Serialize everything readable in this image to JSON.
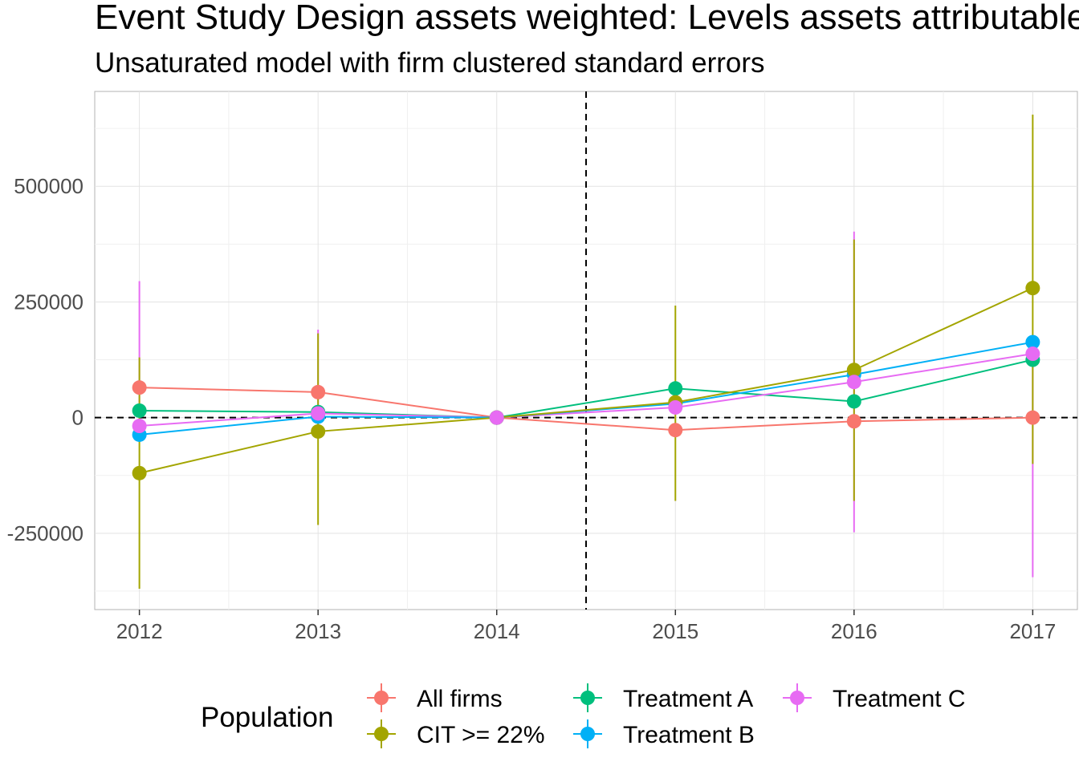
{
  "chart_data": {
    "type": "line",
    "title": "Event Study Design assets weighted: Levels assets attributable",
    "subtitle": "Unsaturated model with firm clustered standard errors",
    "xlabel": "",
    "ylabel": "",
    "x": [
      2012,
      2013,
      2014,
      2015,
      2016,
      2017
    ],
    "x_tick_labels": [
      "2012",
      "2013",
      "2014",
      "2015",
      "2016",
      "2017"
    ],
    "y_tick_values": [
      -250000,
      0,
      250000,
      500000
    ],
    "y_tick_labels": [
      "-250000",
      "0",
      "250000",
      "500000"
    ],
    "xlim": [
      2011.75,
      2017.25
    ],
    "ylim": [
      -415000,
      705000
    ],
    "grid": true,
    "reference_lines": {
      "horizontal_y": 0,
      "vertical_x": 2014.5
    },
    "legend": {
      "title": "Population",
      "position": "bottom"
    },
    "series": [
      {
        "name": "All firms",
        "color": "#F8766D",
        "values": [
          65000,
          55000,
          0,
          -27000,
          -8000,
          0
        ],
        "lower": [
          65000,
          55000,
          0,
          -27000,
          -8000,
          0
        ],
        "upper": [
          65000,
          55000,
          0,
          -27000,
          -8000,
          0
        ]
      },
      {
        "name": "CIT >= 22%",
        "color": "#A3A500",
        "values": [
          -120000,
          -30000,
          0,
          33000,
          103000,
          280000
        ],
        "lower": [
          -370000,
          -232000,
          0,
          -180000,
          -180000,
          -100000
        ],
        "upper": [
          130000,
          182000,
          0,
          242000,
          385000,
          655000
        ]
      },
      {
        "name": "Treatment A",
        "color": "#00BF7D",
        "values": [
          15000,
          12000,
          0,
          63000,
          35000,
          125000
        ],
        "lower": [
          15000,
          12000,
          0,
          63000,
          35000,
          125000
        ],
        "upper": [
          15000,
          12000,
          0,
          63000,
          35000,
          125000
        ]
      },
      {
        "name": "Treatment B",
        "color": "#00B0F6",
        "values": [
          -37000,
          2000,
          0,
          30000,
          93000,
          163000
        ],
        "lower": [
          -37000,
          2000,
          0,
          30000,
          93000,
          163000
        ],
        "upper": [
          -37000,
          2000,
          0,
          30000,
          93000,
          163000
        ]
      },
      {
        "name": "Treatment C",
        "color": "#E76BF3",
        "values": [
          -18000,
          9000,
          0,
          22000,
          77000,
          138000
        ],
        "lower": [
          -18000,
          9000,
          0,
          22000,
          -248000,
          -345000
        ],
        "upper": [
          295000,
          190000,
          0,
          22000,
          402000,
          138000
        ]
      }
    ]
  }
}
